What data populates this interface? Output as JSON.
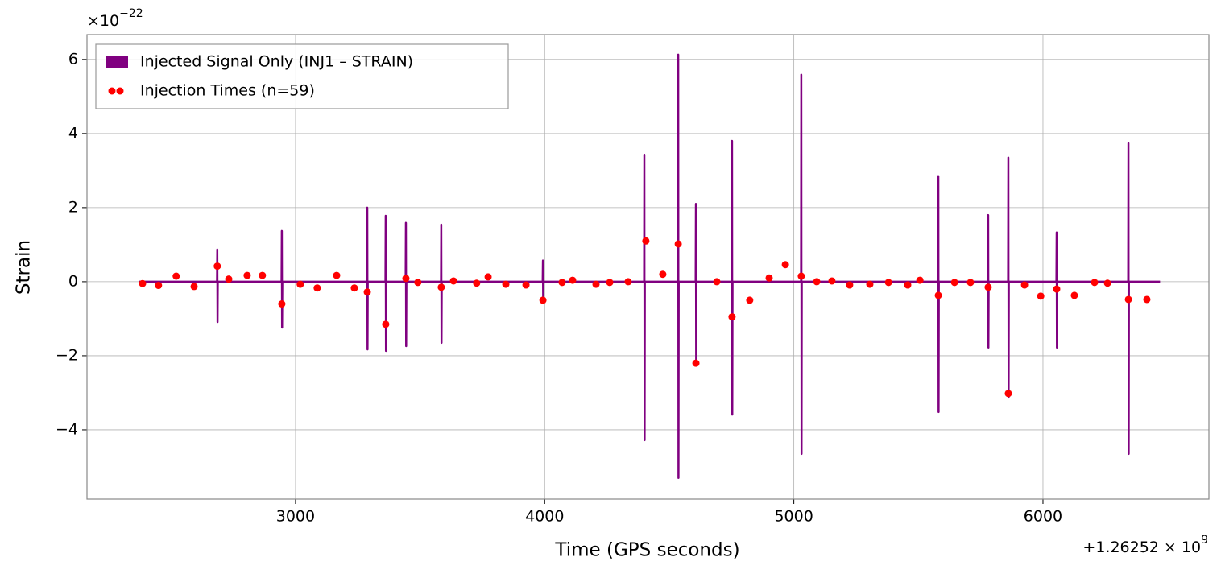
{
  "chart_data": {
    "type": "line",
    "xlabel": "Time (GPS seconds)",
    "ylabel": "Strain",
    "x_offset": {
      "base": "+1.26252 × 10",
      "exponent": "9"
    },
    "y_multiplier": {
      "base": "×10",
      "exponent": "−22"
    },
    "xlim": [
      2163,
      6666
    ],
    "ylim": [
      -5.87,
      6.67
    ],
    "xticks": [
      3000,
      4000,
      5000,
      6000
    ],
    "yticks": [
      {
        "value": -4,
        "label": "−4"
      },
      {
        "value": -2,
        "label": "−2"
      },
      0,
      2,
      4,
      6
    ],
    "grid": true,
    "legend": "upper left",
    "series": [
      {
        "name": "Injected Signal Only (INJ1 – STRAIN)",
        "type": "line",
        "color": "#800080",
        "x": [
          2370,
          2685,
          2686,
          2687,
          2688,
          2944,
          2945,
          2946,
          2947,
          3287,
          3288,
          3289,
          3290,
          3361,
          3362,
          3363,
          3364,
          3442,
          3443,
          3444,
          3445,
          3584,
          3585,
          3586,
          3587,
          3992,
          3993,
          3994,
          3995,
          4399,
          4400,
          4401,
          4402,
          4535,
          4536,
          4537,
          4538,
          4606,
          4607,
          4608,
          4609,
          4751,
          4752,
          4753,
          4754,
          5029,
          5030,
          5031,
          5032,
          5579,
          5580,
          5581,
          5582,
          5779,
          5780,
          5781,
          5782,
          5860,
          5861,
          5862,
          5863,
          6054,
          6055,
          6056,
          6057,
          6342,
          6343,
          6344,
          6345,
          6470
        ],
        "values": [
          0,
          0,
          0.87,
          -1.09,
          0,
          0,
          1.37,
          -1.24,
          0,
          0,
          2.0,
          -1.83,
          0,
          0,
          1.78,
          -1.87,
          0,
          0,
          1.59,
          -1.74,
          0,
          0,
          1.54,
          -1.65,
          0,
          0,
          0.57,
          -0.5,
          0,
          0,
          3.43,
          -4.28,
          0,
          0,
          6.13,
          -5.3,
          0,
          0,
          2.1,
          -2.2,
          0,
          0,
          3.8,
          -3.59,
          0,
          0,
          5.59,
          -4.65,
          0,
          0,
          2.85,
          -3.52,
          0,
          0,
          1.8,
          -1.78,
          0,
          0,
          3.35,
          -3.13,
          0,
          0,
          1.33,
          -1.78,
          0,
          0,
          3.74,
          -4.65,
          0,
          0
        ]
      },
      {
        "name": "Injection Times (n=59)",
        "type": "scatter",
        "color": "#ff0000",
        "x": [
          2386,
          2450,
          2521,
          2593,
          2686,
          2732,
          2806,
          2867,
          2945,
          3019,
          3087,
          3165,
          3236,
          3288,
          3362,
          3443,
          3491,
          3585,
          3634,
          3727,
          3773,
          3844,
          3925,
          3993,
          4070,
          4112,
          4206,
          4261,
          4335,
          4406,
          4474,
          4536,
          4607,
          4691,
          4752,
          4823,
          4901,
          4966,
          5030,
          5092,
          5153,
          5224,
          5305,
          5380,
          5457,
          5506,
          5580,
          5645,
          5709,
          5780,
          5861,
          5926,
          5991,
          6055,
          6126,
          6207,
          6259,
          6343,
          6417
        ],
        "values": [
          -0.05,
          -0.1,
          0.15,
          -0.13,
          0.42,
          0.07,
          0.17,
          0.17,
          -0.6,
          -0.07,
          -0.17,
          0.17,
          -0.17,
          -0.28,
          -1.15,
          0.09,
          -0.02,
          -0.15,
          0.02,
          -0.04,
          0.13,
          -0.07,
          -0.09,
          -0.5,
          -0.02,
          0.04,
          -0.07,
          -0.02,
          0,
          1.1,
          0.2,
          1.02,
          -2.2,
          0,
          -0.95,
          -0.5,
          0.1,
          0.46,
          0.15,
          0,
          0.02,
          -0.09,
          -0.07,
          -0.02,
          -0.09,
          0.04,
          -0.37,
          -0.02,
          -0.02,
          -0.15,
          -3.02,
          -0.09,
          -0.39,
          -0.2,
          -0.37,
          -0.02,
          -0.04,
          -0.48,
          -0.48
        ]
      }
    ]
  }
}
